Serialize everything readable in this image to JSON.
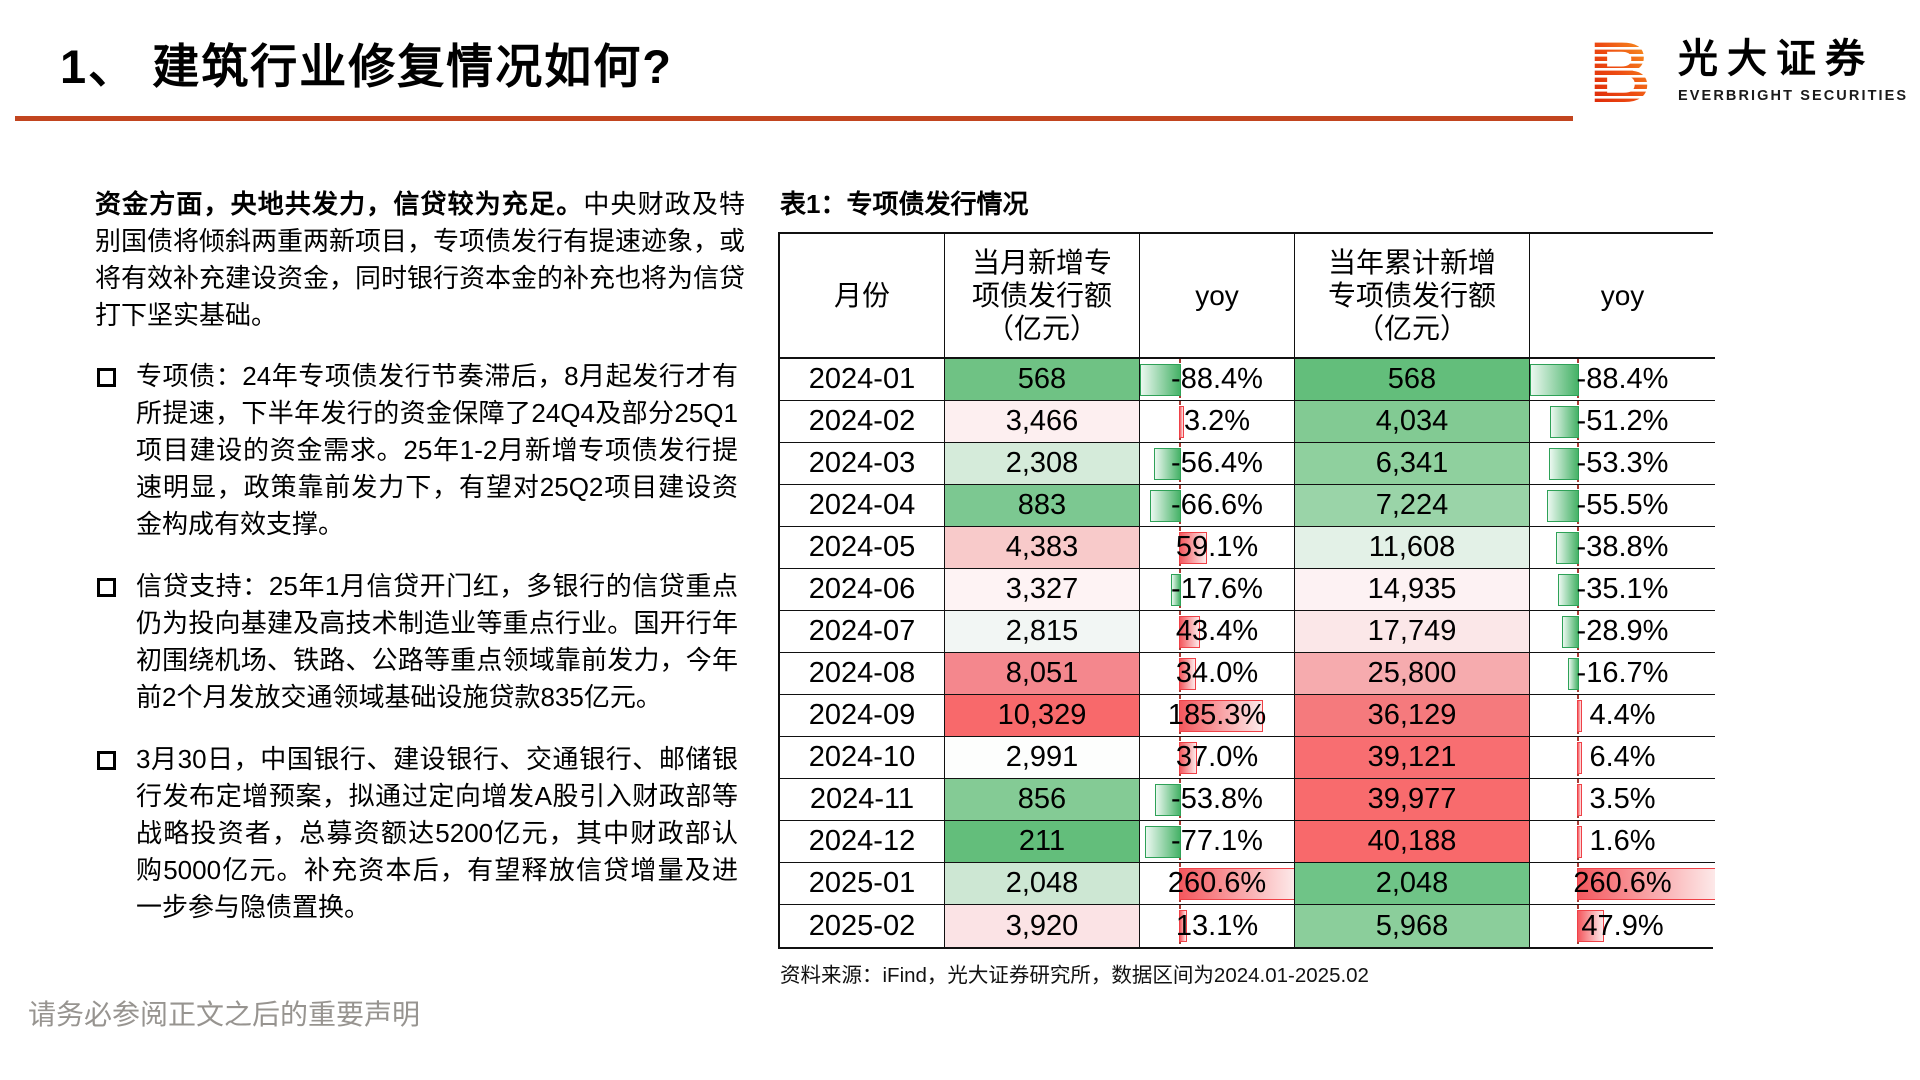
{
  "header": {
    "title": "1、 建筑行业修复情况如何?",
    "brand_cn": "光大证券",
    "brand_en": "EVERBRIGHT SECURITIES",
    "divider_color": "#c2451f"
  },
  "left": {
    "lead_bold": "资金方面，央地共发力，信贷较为充足。",
    "lead_rest": "中央财政及特别国债将倾斜两重两新项目，专项债发行有提速迹象，或将有效补充建设资金，同时银行资本金的补充也将为信贷打下坚实基础。",
    "bullets": [
      "专项债：24年专项债发行节奏滞后，8月起发行才有所提速，下半年发行的资金保障了24Q4及部分25Q1项目建设的资金需求。25年1-2月新增专项债发行提速明显，政策靠前发力下，有望对25Q2项目建设资金构成有效支撑。",
      "信贷支持：25年1月信贷开门红，多银行的信贷重点仍为投向基建及高技术制造业等重点行业。国开行年初围绕机场、铁路、公路等重点领域靠前发力，今年前2个月发放交通领域基础设施贷款835亿元。",
      "3月30日，中国银行、建设银行、交通银行、邮储银行发布定增预案，拟通过定向增发A股引入财政部等战略投资者，总募资额达5200亿元，其中财政部认购5000亿元。补充资本后，有望释放信贷增量及进一步参与隐债置换。"
    ]
  },
  "table": {
    "title": "表1：专项债发行情况",
    "columns": [
      "月份",
      "当月新增专\n项债发行额\n（亿元）",
      "yoy",
      "当年累计新增\n专项债发行额\n（亿元）",
      "yoy"
    ],
    "source": "资料来源：iFind，光大证券研究所，数据区间为2024.01-2025.02",
    "bar_colors": {
      "negative_border": "#2ea157",
      "positive_border": "#ef4147",
      "axis": "#a83c34"
    },
    "rows": [
      {
        "month": "2024-01",
        "monthly": "568",
        "monthly_bg": "#6fc284",
        "yoy_m": "-88.4%",
        "yoy_m_val": -88.4,
        "cum": "568",
        "cum_bg": "#63be7b",
        "yoy_c": "-88.4%",
        "yoy_c_val": -88.4
      },
      {
        "month": "2024-02",
        "monthly": "3,466",
        "monthly_bg": "#fdeff0",
        "yoy_m": "3.2%",
        "yoy_m_val": 3.2,
        "cum": "4,034",
        "cum_bg": "#82ca93",
        "yoy_c": "-51.2%",
        "yoy_c_val": -51.2
      },
      {
        "month": "2024-03",
        "monthly": "2,308",
        "monthly_bg": "#d5ebda",
        "yoy_m": "-56.4%",
        "yoy_m_val": -56.4,
        "cum": "6,341",
        "cum_bg": "#8fd09e",
        "yoy_c": "-53.3%",
        "yoy_c_val": -53.3
      },
      {
        "month": "2024-04",
        "monthly": "883",
        "monthly_bg": "#7cc891",
        "yoy_m": "-66.6%",
        "yoy_m_val": -66.6,
        "cum": "7,224",
        "cum_bg": "#9ad4a8",
        "yoy_c": "-55.5%",
        "yoy_c_val": -55.5
      },
      {
        "month": "2024-05",
        "monthly": "4,383",
        "monthly_bg": "#f8caca",
        "yoy_m": "59.1%",
        "yoy_m_val": 59.1,
        "cum": "11,608",
        "cum_bg": "#e3f1e7",
        "yoy_c": "-38.8%",
        "yoy_c_val": -38.8
      },
      {
        "month": "2024-06",
        "monthly": "3,327",
        "monthly_bg": "#fef3f4",
        "yoy_m": "-17.6%",
        "yoy_m_val": -17.6,
        "cum": "14,935",
        "cum_bg": "#fdf2f3",
        "yoy_c": "-35.1%",
        "yoy_c_val": -35.1
      },
      {
        "month": "2024-07",
        "monthly": "2,815",
        "monthly_bg": "#f2f6f4",
        "yoy_m": "43.4%",
        "yoy_m_val": 43.4,
        "cum": "17,749",
        "cum_bg": "#fbe7e8",
        "yoy_c": "-28.9%",
        "yoy_c_val": -28.9
      },
      {
        "month": "2024-08",
        "monthly": "8,051",
        "monthly_bg": "#f4878d",
        "yoy_m": "34.0%",
        "yoy_m_val": 34.0,
        "cum": "25,800",
        "cum_bg": "#f6abae",
        "yoy_c": "-16.7%",
        "yoy_c_val": -16.7
      },
      {
        "month": "2024-09",
        "monthly": "10,329",
        "monthly_bg": "#f8696b",
        "yoy_m": "185.3%",
        "yoy_m_val": 185.3,
        "cum": "36,129",
        "cum_bg": "#f57a7d",
        "yoy_c": "4.4%",
        "yoy_c_val": 4.4
      },
      {
        "month": "2024-10",
        "monthly": "2,991",
        "monthly_bg": "#fdfefd",
        "yoy_m": "37.0%",
        "yoy_m_val": 37.0,
        "cum": "39,121",
        "cum_bg": "#f86e71",
        "yoy_c": "6.4%",
        "yoy_c_val": 6.4
      },
      {
        "month": "2024-11",
        "monthly": "856",
        "monthly_bg": "#84cb95",
        "yoy_m": "-53.8%",
        "yoy_m_val": -53.8,
        "cum": "39,977",
        "cum_bg": "#f86b6d",
        "yoy_c": "3.5%",
        "yoy_c_val": 3.5
      },
      {
        "month": "2024-12",
        "monthly": "211",
        "monthly_bg": "#63be7b",
        "yoy_m": "-77.1%",
        "yoy_m_val": -77.1,
        "cum": "40,188",
        "cum_bg": "#f8696b",
        "yoy_c": "1.6%",
        "yoy_c_val": 1.6
      },
      {
        "month": "2025-01",
        "monthly": "2,048",
        "monthly_bg": "#cde7d3",
        "yoy_m": "260.6%",
        "yoy_m_val": 260.6,
        "cum": "2,048",
        "cum_bg": "#6fc487",
        "yoy_c": "260.6%",
        "yoy_c_val": 260.6
      },
      {
        "month": "2025-02",
        "monthly": "3,920",
        "monthly_bg": "#fbe3e5",
        "yoy_m": "13.1%",
        "yoy_m_val": 13.1,
        "cum": "5,968",
        "cum_bg": "#8bce9b",
        "yoy_c": "47.9%",
        "yoy_c_val": 47.9
      }
    ]
  },
  "footer": {
    "disclaimer": "请务必参阅正文之后的重要声明"
  }
}
